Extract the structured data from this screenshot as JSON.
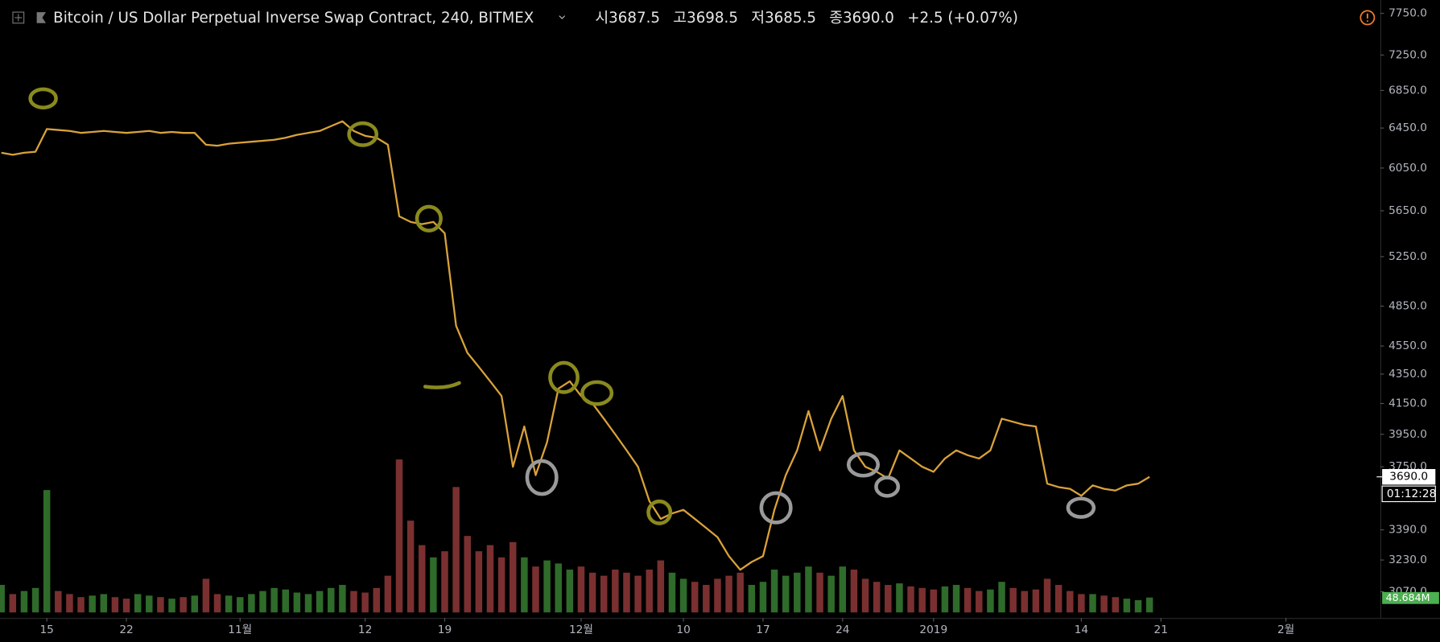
{
  "chart_data": {
    "type": "line",
    "title": "Bitcoin / US Dollar Perpetual Inverse Swap Contract, 240, BITMEX",
    "ohlc": [
      "시3687.5",
      "고3698.5",
      "저3685.5",
      "종3690.0",
      "+2.5 (+0.07%)"
    ],
    "log_scale": true,
    "grid": false,
    "color": "#d9a23a",
    "x": [
      11,
      12,
      13,
      14,
      15,
      16,
      17,
      18,
      19,
      20,
      21,
      22,
      23,
      24,
      25,
      26,
      27,
      28,
      29,
      30,
      31,
      32,
      33,
      34,
      35,
      36,
      37,
      38,
      39,
      40,
      41,
      42,
      43,
      44,
      45,
      46,
      47,
      48,
      49,
      50,
      51,
      52,
      53,
      54,
      55,
      56,
      57,
      58,
      59,
      60,
      61,
      62,
      63,
      64,
      65,
      66,
      67,
      68,
      69,
      70,
      71,
      72,
      73,
      74,
      75,
      76,
      77,
      78,
      79,
      80,
      81,
      82,
      83,
      84,
      85,
      86,
      87,
      88,
      89,
      90,
      91,
      92,
      93,
      94,
      95,
      96,
      97,
      98,
      99,
      100,
      101,
      102,
      103,
      104,
      105,
      106,
      107,
      108,
      109,
      110,
      111,
      112
    ],
    "values": [
      6200,
      6180,
      6200,
      6210,
      6440,
      6430,
      6420,
      6400,
      6410,
      6420,
      6410,
      6400,
      6410,
      6420,
      6400,
      6410,
      6400,
      6400,
      6280,
      6270,
      6290,
      6300,
      6310,
      6320,
      6330,
      6350,
      6380,
      6400,
      6420,
      6470,
      6520,
      6420,
      6370,
      6350,
      6280,
      5600,
      5550,
      5530,
      5550,
      5450,
      4700,
      4500,
      4400,
      4300,
      4200,
      3750,
      4000,
      3700,
      3900,
      4250,
      4300,
      4200,
      4150,
      4050,
      3950,
      3850,
      3750,
      3550,
      3450,
      3480,
      3500,
      3450,
      3400,
      3350,
      3250,
      3180,
      3220,
      3250,
      3500,
      3700,
      3850,
      4100,
      3850,
      4050,
      4200,
      3850,
      3750,
      3720,
      3680,
      3850,
      3800,
      3750,
      3720,
      3800,
      3850,
      3820,
      3800,
      3850,
      4050,
      4030,
      4010,
      4000,
      3650,
      3630,
      3620,
      3580,
      3640,
      3620,
      3610,
      3640,
      3650,
      3690
    ],
    "volume": {
      "values": [
        90,
        60,
        70,
        80,
        400,
        70,
        60,
        50,
        55,
        60,
        50,
        45,
        60,
        55,
        50,
        45,
        50,
        55,
        110,
        60,
        55,
        50,
        60,
        70,
        80,
        75,
        65,
        60,
        70,
        80,
        90,
        70,
        65,
        80,
        120,
        500,
        300,
        220,
        180,
        200,
        410,
        250,
        200,
        220,
        180,
        230,
        180,
        150,
        170,
        160,
        140,
        150,
        130,
        120,
        140,
        130,
        120,
        140,
        170,
        130,
        110,
        100,
        90,
        110,
        120,
        130,
        90,
        100,
        140,
        120,
        130,
        150,
        130,
        120,
        150,
        140,
        110,
        100,
        90,
        95,
        85,
        80,
        75,
        85,
        90,
        80,
        70,
        75,
        100,
        80,
        70,
        75,
        110,
        90,
        70,
        60,
        60,
        55,
        50,
        45,
        40,
        48.684
      ],
      "vlim": [
        0,
        600
      ],
      "up_color": "#2f6b2a",
      "down_color": "#7a3030",
      "last_label": "48.684M"
    },
    "ylim": [
      2970,
      7915
    ],
    "yticks": [
      {
        "value": 7750,
        "label": "7750.0"
      },
      {
        "value": 7250,
        "label": "7250.0"
      },
      {
        "value": 6850,
        "label": "6850.0"
      },
      {
        "value": 6450,
        "label": "6450.0"
      },
      {
        "value": 6050,
        "label": "6050.0"
      },
      {
        "value": 5650,
        "label": "5650.0"
      },
      {
        "value": 5250,
        "label": "5250.0"
      },
      {
        "value": 4850,
        "label": "4850.0"
      },
      {
        "value": 4550,
        "label": "4550.0"
      },
      {
        "value": 4350,
        "label": "4350.0"
      },
      {
        "value": 4150,
        "label": "4150.0"
      },
      {
        "value": 3950,
        "label": "3950.0"
      },
      {
        "value": 3750,
        "label": "3750.0"
      },
      {
        "value": 3390,
        "label": "3390.0"
      },
      {
        "value": 3230,
        "label": "3230.0"
      },
      {
        "value": 3070,
        "label": "3070.0"
      }
    ],
    "xlim": [
      10.88,
      132.3
    ],
    "xticks": [
      15,
      22,
      {
        "value": 32,
        "label": "11월"
      },
      {
        "value": 43,
        "label": "12"
      },
      {
        "value": 50,
        "label": "19"
      },
      {
        "value": 62,
        "label": "12월"
      },
      {
        "value": 71,
        "label": "10"
      },
      {
        "value": 78,
        "label": "17"
      },
      {
        "value": 85,
        "label": "24"
      },
      {
        "value": 93,
        "label": "2019"
      },
      {
        "value": 106,
        "label": "14"
      },
      {
        "value": 113,
        "label": "21"
      },
      {
        "value": 124,
        "label": "2월"
      }
    ],
    "last_price": {
      "value": 3690,
      "label": "3690.0"
    },
    "countdown": "01:12:28"
  }
}
